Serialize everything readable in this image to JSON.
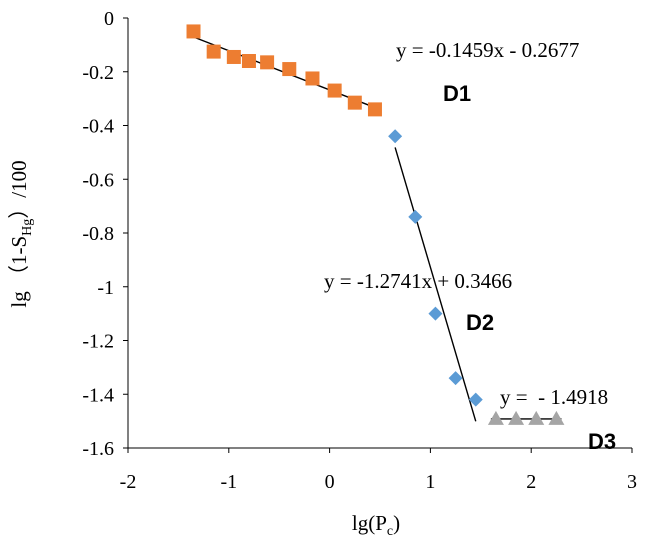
{
  "chart_data": {
    "type": "scatter",
    "title": "",
    "xlabel": "lg(P",
    "xlabel_sub": "c",
    "xlabel_end": ")",
    "ylabel": "lg （1-S",
    "ylabel_sub": "Hg",
    "ylabel_end": "）/100",
    "xlim": [
      -2,
      3
    ],
    "ylim": [
      -1.6,
      0
    ],
    "xticks": [
      -2,
      -1,
      0,
      1,
      2,
      3
    ],
    "yticks": [
      0,
      -0.2,
      -0.4,
      -0.6,
      -0.8,
      -1,
      -1.2,
      -1.4,
      -1.6
    ],
    "xtick_labels": [
      "-2",
      "-1",
      "0",
      "1",
      "2",
      "3"
    ],
    "ytick_labels": [
      "0",
      "-0.2",
      "-0.4",
      "-0.6",
      "-0.8",
      "-1",
      "-1.2",
      "-1.4",
      "-1.6"
    ],
    "grid": false,
    "series": [
      {
        "name": "D1",
        "marker": "square",
        "color": "#ED7D31",
        "x": [
          -1.35,
          -1.15,
          -0.95,
          -0.8,
          -0.62,
          -0.4,
          -0.17,
          0.05,
          0.25,
          0.45
        ],
        "y": [
          -0.05,
          -0.125,
          -0.145,
          -0.16,
          -0.165,
          -0.19,
          -0.225,
          -0.27,
          -0.315,
          -0.34
        ],
        "fit": {
          "slope": -0.1459,
          "intercept": -0.2677,
          "x_range": [
            -1.35,
            0.45
          ]
        },
        "equation": "y = -0.1459x - 0.2677",
        "label": "D1"
      },
      {
        "name": "D2",
        "marker": "diamond",
        "color": "#5B9BD5",
        "x": [
          0.65,
          0.85,
          1.05,
          1.25,
          1.45
        ],
        "y": [
          -0.44,
          -0.74,
          -1.1,
          -1.34,
          -1.42
        ],
        "fit": {
          "slope": -1.2741,
          "intercept": 0.3466,
          "x_range": [
            0.65,
            1.45
          ]
        },
        "equation": "y = -1.2741x + 0.3466",
        "label": "D2"
      },
      {
        "name": "D3",
        "marker": "triangle",
        "color": "#A5A5A5",
        "x": [
          1.65,
          1.85,
          2.05,
          2.25
        ],
        "y": [
          -1.4918,
          -1.4918,
          -1.4918,
          -1.4918
        ],
        "fit": {
          "slope": 0,
          "intercept": -1.4918,
          "x_range": [
            1.6,
            2.3
          ]
        },
        "equation": "y =  - 1.4918",
        "label": "D3"
      }
    ]
  }
}
